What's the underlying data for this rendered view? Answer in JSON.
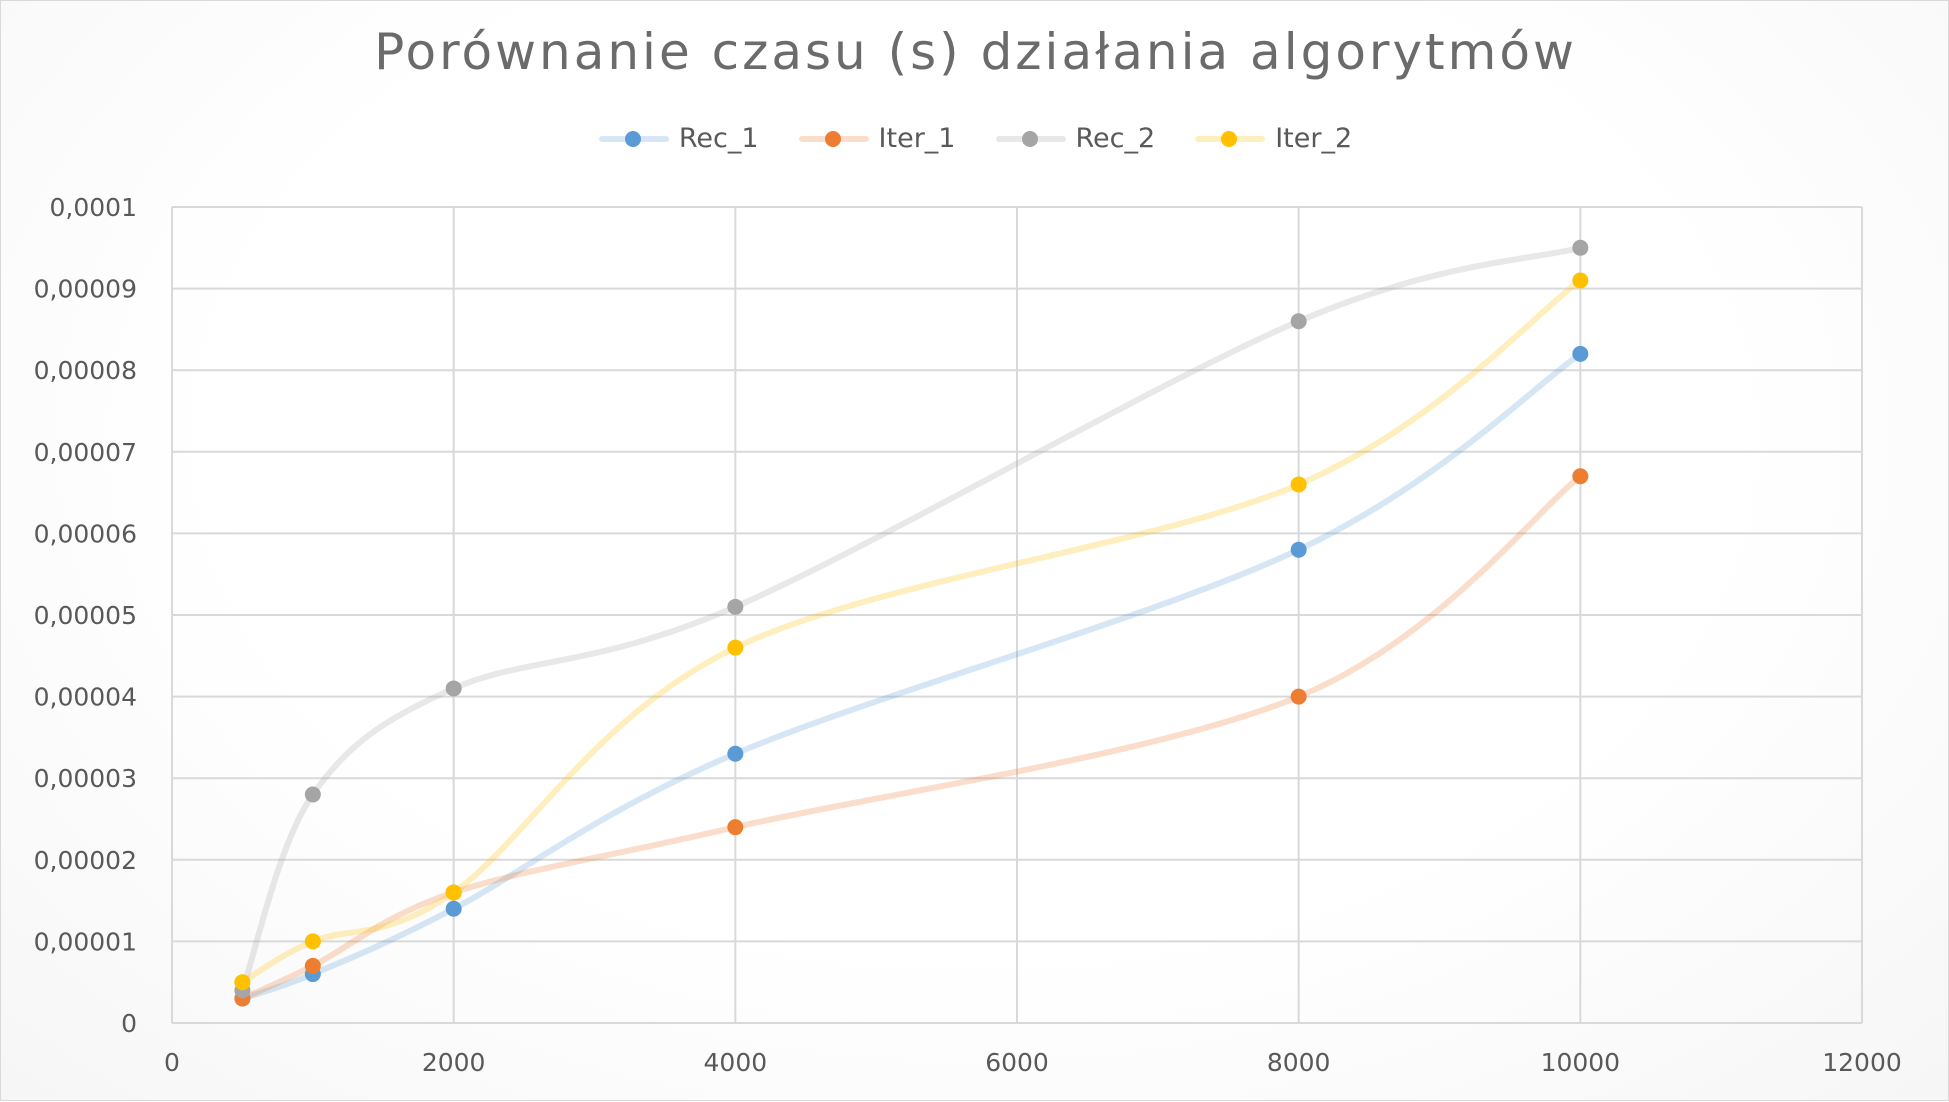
{
  "chart_data": {
    "type": "line",
    "title": "Porównanie czasu (s) działania algorytmów",
    "xlabel": "",
    "ylabel": "",
    "xlim": [
      0,
      12000
    ],
    "ylim": [
      0,
      0.0001
    ],
    "x_ticks": [
      0,
      2000,
      4000,
      6000,
      8000,
      10000,
      12000
    ],
    "x_tick_labels": [
      "0",
      "2000",
      "4000",
      "6000",
      "8000",
      "10000",
      "12000"
    ],
    "y_ticks": [
      0,
      1e-05,
      2e-05,
      3e-05,
      4e-05,
      5e-05,
      6e-05,
      7e-05,
      8e-05,
      9e-05,
      0.0001
    ],
    "y_tick_labels": [
      "0",
      "0,00001",
      "0,00002",
      "0,00003",
      "0,00004",
      "0,00005",
      "0,00006",
      "0,00007",
      "0,00008",
      "0,00009",
      "0,0001"
    ],
    "grid": true,
    "smooth": true,
    "legend_position": "top",
    "x": [
      500,
      1000,
      2000,
      4000,
      8000,
      10000
    ],
    "series": [
      {
        "name": "Rec_1",
        "color": "#5b9bd5",
        "values": [
          3e-06,
          6e-06,
          1.4e-05,
          3.3e-05,
          5.8e-05,
          8.2e-05
        ]
      },
      {
        "name": "Iter_1",
        "color": "#ed7d31",
        "values": [
          3e-06,
          7e-06,
          1.6e-05,
          2.4e-05,
          4e-05,
          6.7e-05
        ]
      },
      {
        "name": "Rec_2",
        "color": "#a5a5a5",
        "values": [
          4e-06,
          2.8e-05,
          4.1e-05,
          5.1e-05,
          8.6e-05,
          9.5e-05
        ]
      },
      {
        "name": "Iter_2",
        "color": "#ffc000",
        "values": [
          5e-06,
          1e-05,
          1.6e-05,
          4.6e-05,
          6.6e-05,
          9.1e-05
        ]
      }
    ]
  }
}
